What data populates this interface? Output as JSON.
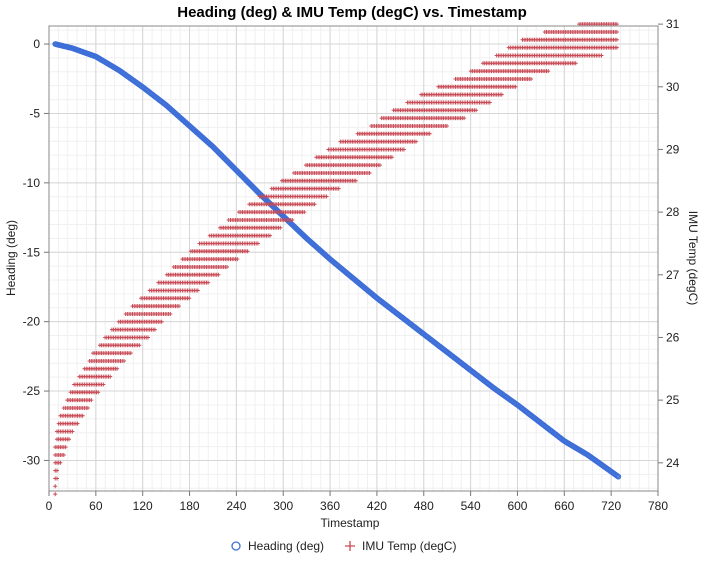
{
  "chart_data": {
    "type": "scatter",
    "title": "Heading (deg) & IMU Temp (degC) vs. Timestamp",
    "xlabel": "Timestamp",
    "ylabel_left": "Heading (deg)",
    "ylabel_right": "IMU Temp (degC)",
    "xlim": [
      0,
      780
    ],
    "ylim_left": [
      -32.2,
      1.3
    ],
    "ylim_right": [
      23.55,
      30.97
    ],
    "x_ticks": [
      "0",
      "60",
      "120",
      "180",
      "240",
      "300",
      "360",
      "420",
      "480",
      "540",
      "600",
      "660",
      "720",
      "780"
    ],
    "y_left_ticks": [
      "0",
      "-5",
      "-10",
      "-15",
      "-20",
      "-25",
      "-30"
    ],
    "y_right_ticks": [
      "31",
      "30",
      "29",
      "28",
      "27",
      "26",
      "25",
      "24"
    ],
    "grid": true,
    "legend_position": "bottom-center",
    "series": [
      {
        "name": "Heading (deg)",
        "axis": "left",
        "marker": "circle",
        "color": "#3E6FD8",
        "points": [
          [
            8,
            0.0
          ],
          [
            30,
            -0.3
          ],
          [
            60,
            -0.9
          ],
          [
            90,
            -1.9
          ],
          [
            120,
            -3.1
          ],
          [
            150,
            -4.4
          ],
          [
            180,
            -5.9
          ],
          [
            210,
            -7.4
          ],
          [
            240,
            -9.1
          ],
          [
            270,
            -10.8
          ],
          [
            300,
            -12.4
          ],
          [
            330,
            -14.0
          ],
          [
            360,
            -15.5
          ],
          [
            390,
            -16.9
          ],
          [
            420,
            -18.3
          ],
          [
            450,
            -19.6
          ],
          [
            480,
            -20.9
          ],
          [
            510,
            -22.2
          ],
          [
            540,
            -23.5
          ],
          [
            570,
            -24.8
          ],
          [
            600,
            -26.0
          ],
          [
            630,
            -27.3
          ],
          [
            660,
            -28.6
          ],
          [
            690,
            -29.6
          ],
          [
            730,
            -31.2
          ]
        ]
      },
      {
        "name": "IMU Temp (degC)",
        "axis": "right",
        "marker": "plus",
        "color": "#C84A55",
        "points": [
          [
            8,
            23.85
          ],
          [
            12,
            24.3
          ],
          [
            20,
            24.55
          ],
          [
            30,
            24.85
          ],
          [
            45,
            25.15
          ],
          [
            60,
            25.45
          ],
          [
            80,
            25.75
          ],
          [
            100,
            26.05
          ],
          [
            125,
            26.35
          ],
          [
            150,
            26.65
          ],
          [
            175,
            26.95
          ],
          [
            205,
            27.25
          ],
          [
            235,
            27.55
          ],
          [
            265,
            27.85
          ],
          [
            295,
            28.1
          ],
          [
            330,
            28.4
          ],
          [
            365,
            28.7
          ],
          [
            405,
            28.95
          ],
          [
            440,
            29.25
          ],
          [
            480,
            29.55
          ],
          [
            525,
            29.8
          ],
          [
            565,
            30.1
          ],
          [
            605,
            30.4
          ],
          [
            645,
            30.6
          ],
          [
            700,
            30.75
          ],
          [
            728,
            30.85
          ]
        ],
        "band_width": [
          0.85,
          0.8,
          0.8,
          0.75,
          0.75,
          0.75,
          0.75,
          0.75,
          0.75,
          0.7,
          0.75,
          0.75,
          0.75,
          0.75,
          0.75,
          0.75,
          0.75,
          0.75,
          0.75,
          0.7,
          0.7,
          0.7,
          0.7,
          0.65,
          0.6,
          0.5
        ]
      }
    ]
  },
  "legend": [
    {
      "label": "Heading (deg)",
      "marker": "circle",
      "color": "#3E6FD8"
    },
    {
      "label": "IMU Temp (degC)",
      "marker": "plus",
      "color": "#C84A55"
    }
  ]
}
